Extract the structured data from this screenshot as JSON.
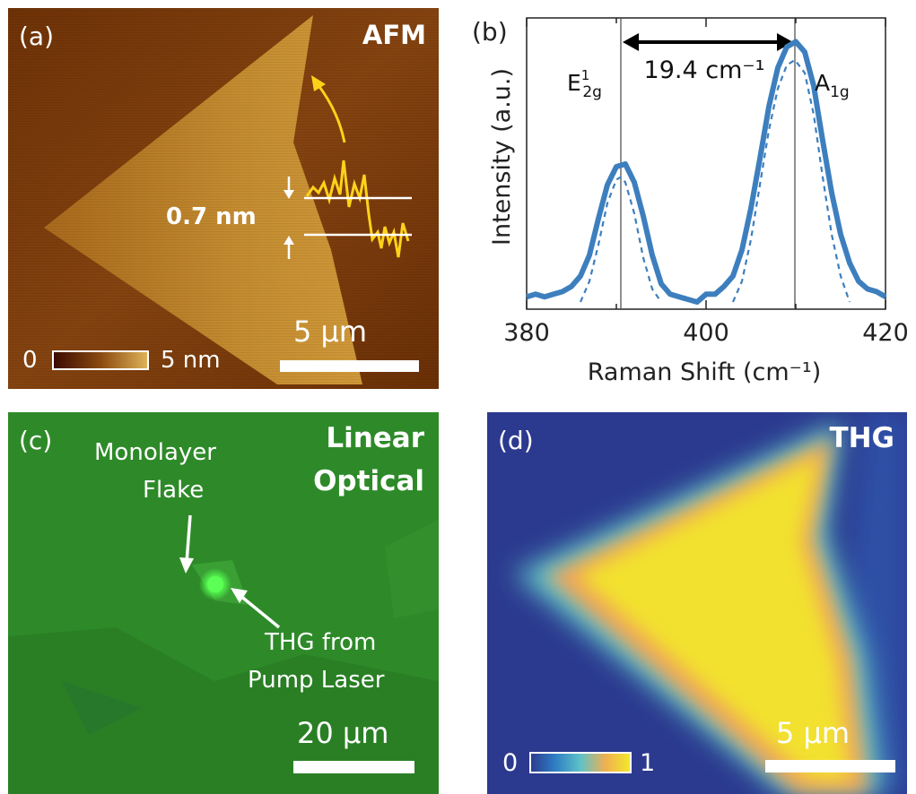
{
  "panel_a": {
    "label": "(a)",
    "title": "AFM",
    "step_height": "0.7 nm",
    "scale_bar": "5 μm",
    "colorbar_min": "0",
    "colorbar_max": "5 nm",
    "colors": {
      "bg_dark": "#6b3006",
      "bg_mid": "#8a4a10",
      "flake": "#c28a2e",
      "profile": "#ffd21a"
    }
  },
  "panel_b": {
    "label": "(b)",
    "peak_left_main": "E",
    "peak_left_sup": "1",
    "peak_left_sub": "2g",
    "peak_right_main": "A",
    "peak_right_sub": "1g",
    "separation": "19.4 cm⁻¹"
  },
  "panel_c": {
    "label": "(c)",
    "title_line1": "Linear",
    "title_line2": "Optical",
    "annotation_flake_1": "Monolayer",
    "annotation_flake_2": "Flake",
    "annotation_thg_1": "THG from",
    "annotation_thg_2": "Pump Laser",
    "scale_bar": "20 μm",
    "colors": {
      "bg": "#2f8a2a",
      "spot": "#60ff5a"
    }
  },
  "panel_d": {
    "label": "(d)",
    "title": "THG",
    "scale_bar": "5 μm",
    "colorbar_min": "0",
    "colorbar_max": "1",
    "colors": {
      "bg": "#2b3a8f",
      "mid": "#5fc2c8",
      "high": "#f2ea2a"
    }
  },
  "chart_data": {
    "type": "line",
    "xlabel": "Raman Shift (cm⁻¹)",
    "ylabel": "Intensity (a.u.)",
    "xlim": [
      380,
      420
    ],
    "ylim": [
      0,
      1.05
    ],
    "xticks": [
      "380",
      "400",
      "420"
    ],
    "vlines": [
      390.5,
      409.9
    ],
    "series": [
      {
        "style": "solid",
        "color": "#3d7fbe",
        "x": [
          380,
          381,
          382,
          383,
          384,
          385,
          386,
          387,
          388,
          389,
          390,
          391,
          392,
          393,
          394,
          395,
          396,
          397,
          398,
          399,
          400,
          401,
          402,
          403,
          404,
          405,
          406,
          407,
          408,
          409,
          410,
          411,
          412,
          413,
          414,
          415,
          416,
          417,
          418,
          419,
          420
        ],
        "y": [
          0.02,
          0.03,
          0.02,
          0.03,
          0.04,
          0.06,
          0.1,
          0.18,
          0.32,
          0.45,
          0.52,
          0.53,
          0.46,
          0.33,
          0.18,
          0.07,
          0.03,
          0.02,
          0.01,
          0.0,
          0.03,
          0.03,
          0.06,
          0.1,
          0.2,
          0.36,
          0.55,
          0.75,
          0.9,
          0.98,
          1.0,
          0.96,
          0.83,
          0.62,
          0.42,
          0.26,
          0.15,
          0.08,
          0.05,
          0.04,
          0.02
        ]
      },
      {
        "style": "dashed",
        "color": "#3d7fbe",
        "x": [
          386,
          387,
          388,
          389,
          390,
          390.5,
          391,
          392,
          393,
          394,
          395
        ],
        "y": [
          0.0,
          0.08,
          0.22,
          0.38,
          0.47,
          0.48,
          0.46,
          0.34,
          0.17,
          0.05,
          0.0
        ]
      },
      {
        "style": "dashed",
        "color": "#3d7fbe",
        "x": [
          403,
          404,
          405,
          406,
          407,
          408,
          409,
          409.9,
          411,
          412,
          413,
          414,
          415,
          416
        ],
        "y": [
          0.0,
          0.08,
          0.24,
          0.45,
          0.66,
          0.82,
          0.91,
          0.93,
          0.88,
          0.72,
          0.48,
          0.26,
          0.1,
          0.0
        ]
      }
    ]
  }
}
